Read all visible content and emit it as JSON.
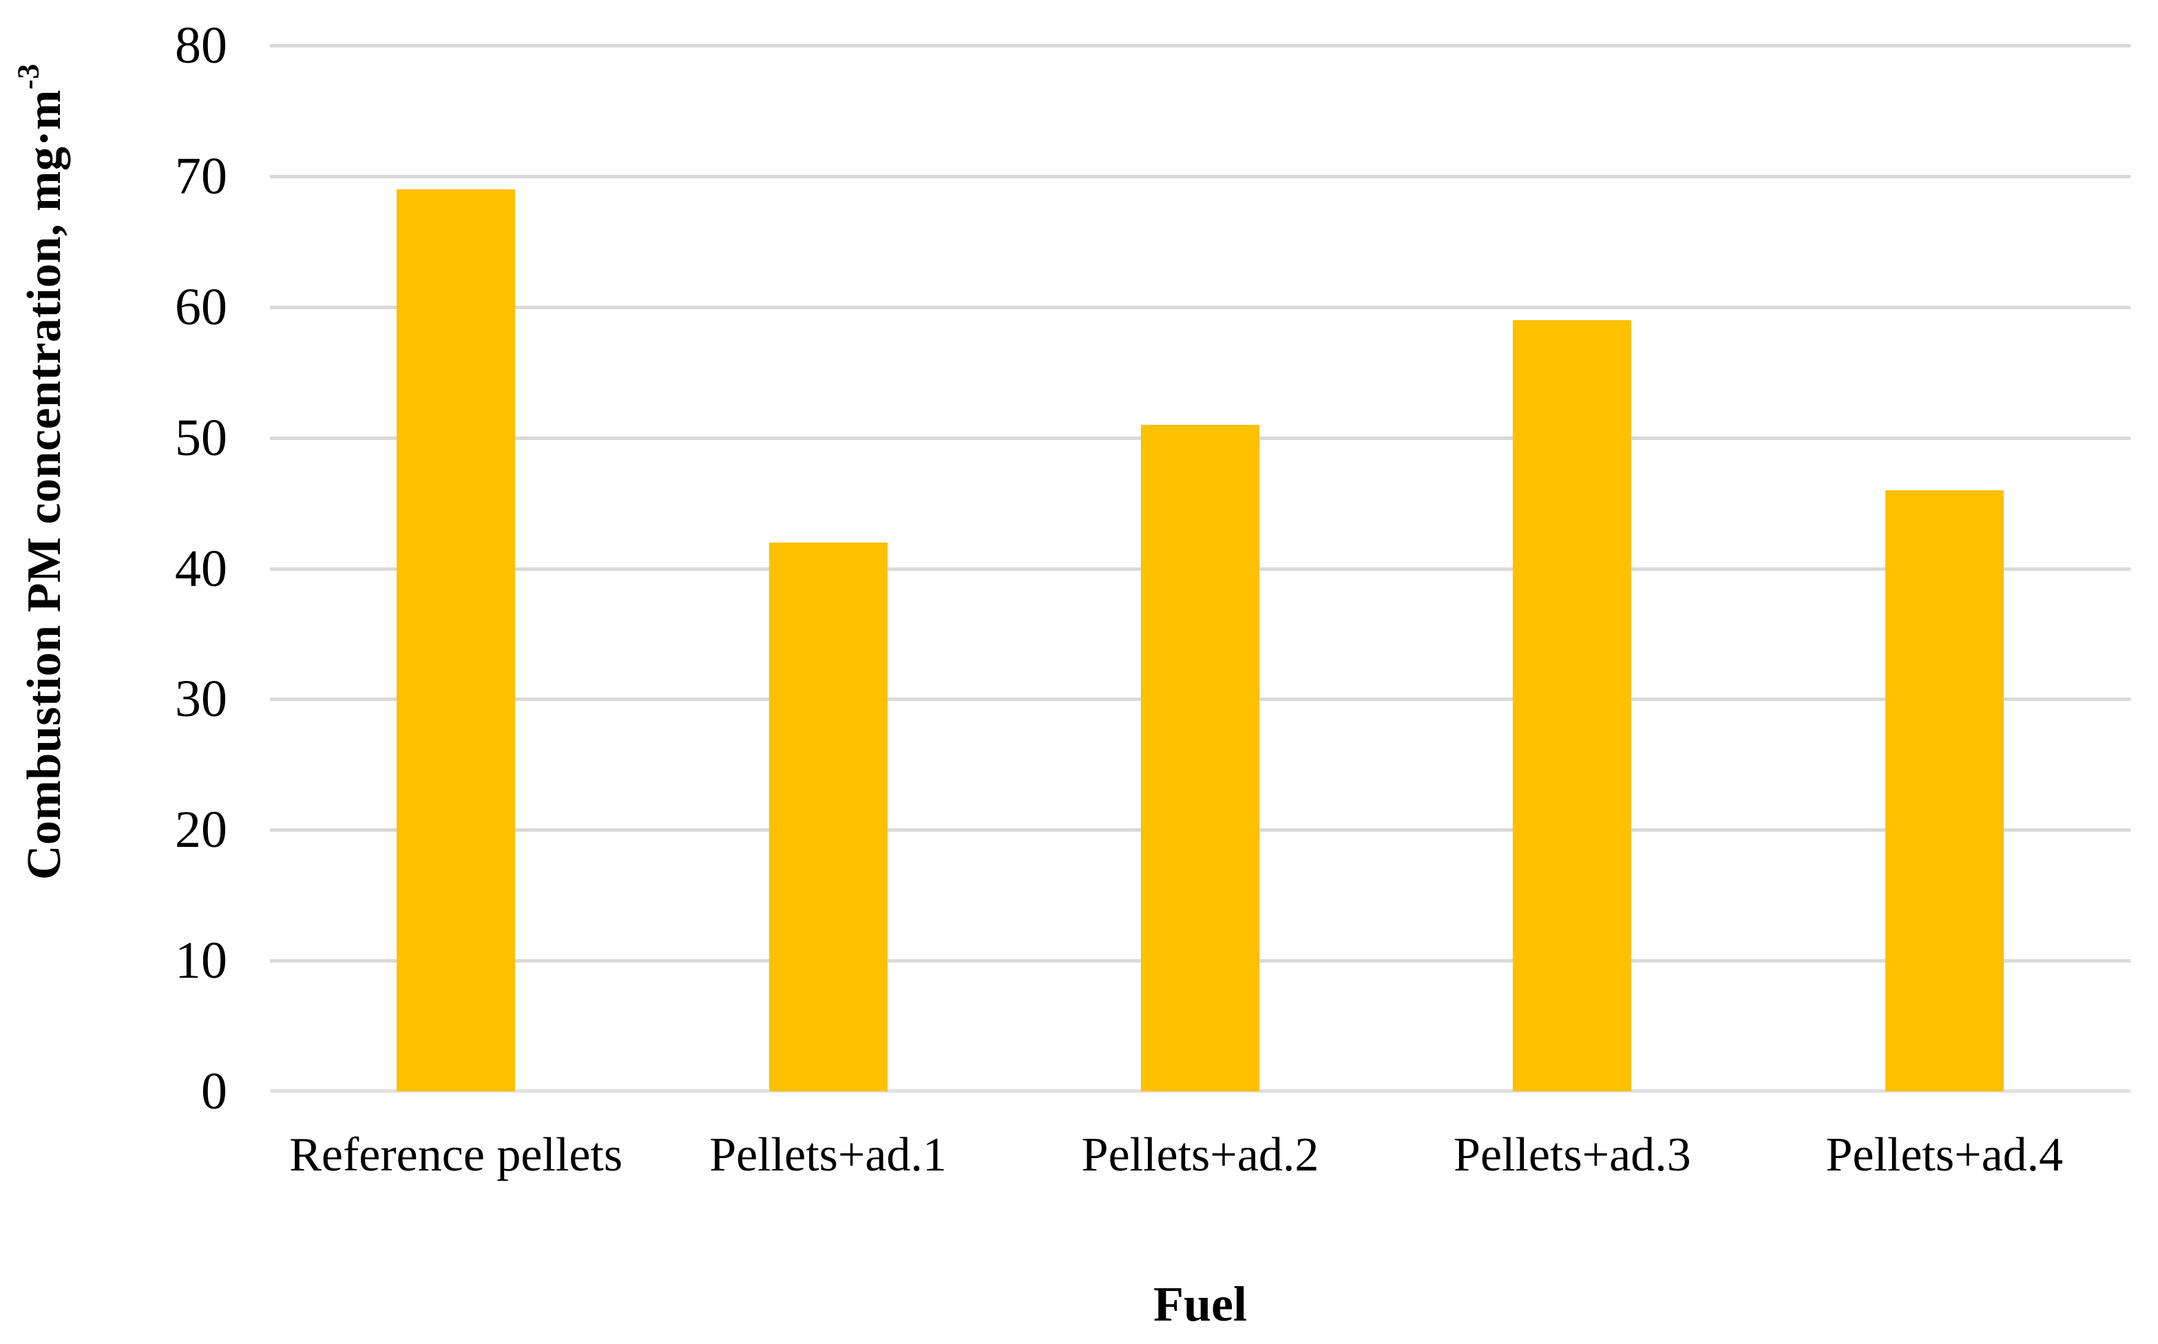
{
  "chart_data": {
    "type": "bar",
    "categories": [
      "Reference pellets",
      "Pellets+ad.1",
      "Pellets+ad.2",
      "Pellets+ad.3",
      "Pellets+ad.4"
    ],
    "values": [
      69,
      42,
      51,
      59,
      46
    ],
    "title": "",
    "xlabel": "Fuel",
    "ylabel": "Combustion PM concentration, mg·m⁻³",
    "ylabel_main": "Combustion PM concentration, mg·m",
    "ylabel_sup": "-3",
    "yticks": [
      0,
      10,
      20,
      30,
      40,
      50,
      60,
      70,
      80
    ],
    "ylim": [
      0,
      80
    ],
    "grid": "horizontal",
    "legend": "none",
    "colors": {
      "bar": "#FFC000",
      "gridline": "#D9D9D9",
      "axis_line": "#E0E0E0",
      "text": "#000000",
      "background": "#FFFFFF"
    }
  }
}
